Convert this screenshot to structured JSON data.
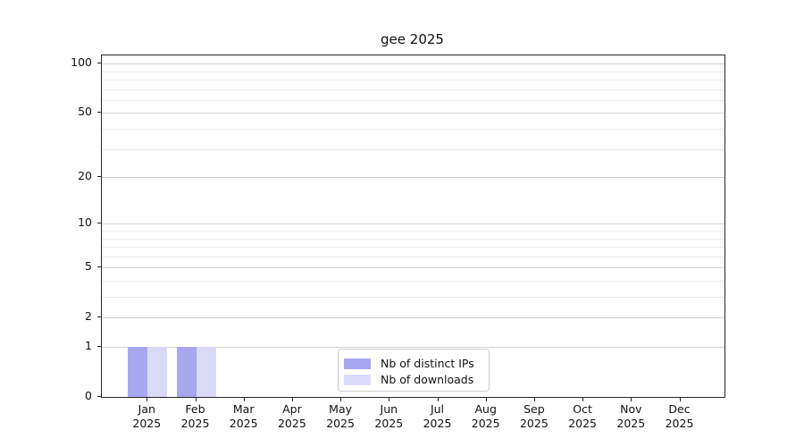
{
  "title": "gee 2025",
  "chart_data": {
    "type": "bar",
    "title": "gee 2025",
    "categories": [
      "Jan",
      "Feb",
      "Mar",
      "Apr",
      "May",
      "Jun",
      "Jul",
      "Aug",
      "Sep",
      "Oct",
      "Nov",
      "Dec"
    ],
    "year": "2025",
    "x_tick_labels_line2": [
      "2025",
      "2025",
      "2025",
      "2025",
      "2025",
      "2025",
      "2025",
      "2025",
      "2025",
      "2025",
      "2025",
      "2025"
    ],
    "series": [
      {
        "name": "Nb of distinct IPs",
        "color": "#a7a7f0",
        "values": [
          1,
          1,
          0,
          0,
          0,
          0,
          0,
          0,
          0,
          0,
          0,
          0
        ]
      },
      {
        "name": "Nb of downloads",
        "color": "#dadaf8",
        "values": [
          1,
          1,
          0,
          0,
          0,
          0,
          0,
          0,
          0,
          0,
          0,
          0
        ]
      }
    ],
    "yscale": "log1p",
    "ylim": [
      0,
      112
    ],
    "y_tick_values": [
      0,
      1,
      2,
      5,
      10,
      20,
      50,
      100
    ],
    "y_tick_labels": [
      "0",
      "1",
      "2",
      "5",
      "10",
      "20",
      "50",
      "100"
    ],
    "y_minor_gridline_values": [
      3,
      4,
      6,
      7,
      8,
      9,
      30,
      40,
      60,
      70,
      80,
      90
    ],
    "grid": "horizontal",
    "legend_position": "lower center"
  },
  "legend": {
    "items": [
      {
        "label": "Nb of distinct IPs",
        "color": "#a7a7f0"
      },
      {
        "label": "Nb of downloads",
        "color": "#dadaf8"
      }
    ]
  },
  "colors": {
    "bar_distinct_ips": "#a7a7f0",
    "bar_downloads": "#dadaf8",
    "grid_major": "#d2d2d2",
    "grid_minor": "#ebebeb",
    "axis_frame": "#262626",
    "text": "#111111",
    "legend_border": "#cccccc",
    "background": "#ffffff"
  }
}
